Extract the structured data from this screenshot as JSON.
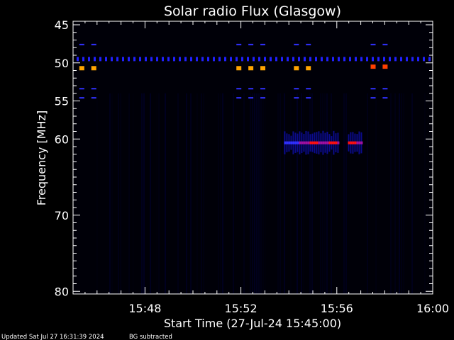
{
  "chart_data": {
    "type": "heatmap",
    "title": "Solar radio Flux (Glasgow)",
    "xlabel": "Start Time (27-Jul-24 15:45:00)",
    "ylabel": "Frequency [MHz]",
    "xlim_minutes_after_1545": [
      0,
      15
    ],
    "ylim": [
      45,
      80
    ],
    "x_tick_labels": [
      {
        "label": "15:48",
        "minute": 3
      },
      {
        "label": "15:52",
        "minute": 7
      },
      {
        "label": "15:56",
        "minute": 11
      },
      {
        "label": "16:00",
        "minute": 15
      }
    ],
    "y_ticks": [
      45,
      50,
      55,
      60,
      70,
      80
    ],
    "colormap": [
      "#000010",
      "#0000ff",
      "#ff0000",
      "#ffa500"
    ],
    "features": {
      "continuous_line_mhz": 49.5,
      "markers": [
        {
          "minute": 0.35,
          "mhz": 50.7,
          "color": "#ffa500"
        },
        {
          "minute": 0.85,
          "mhz": 50.7,
          "color": "#ffa500"
        },
        {
          "minute": 6.9,
          "mhz": 50.7,
          "color": "#ffa500"
        },
        {
          "minute": 7.4,
          "mhz": 50.7,
          "color": "#ffa500"
        },
        {
          "minute": 7.9,
          "mhz": 50.7,
          "color": "#ffa500"
        },
        {
          "minute": 9.3,
          "mhz": 50.7,
          "color": "#ffa500"
        },
        {
          "minute": 9.8,
          "mhz": 50.7,
          "color": "#ffa500"
        },
        {
          "minute": 12.5,
          "mhz": 50.5,
          "color": "#ff4000"
        },
        {
          "minute": 13.0,
          "mhz": 50.5,
          "color": "#ff4000"
        }
      ],
      "burst": {
        "mhz": 60.5,
        "start_minute": 8.8,
        "end_minute": 12.0,
        "peaks_minute": [
          10.0,
          10.8,
          11.6
        ]
      }
    }
  },
  "footer": {
    "updated": "Updated Sat Jul 27 16:31:39 2024",
    "note": "BG subtracted"
  }
}
